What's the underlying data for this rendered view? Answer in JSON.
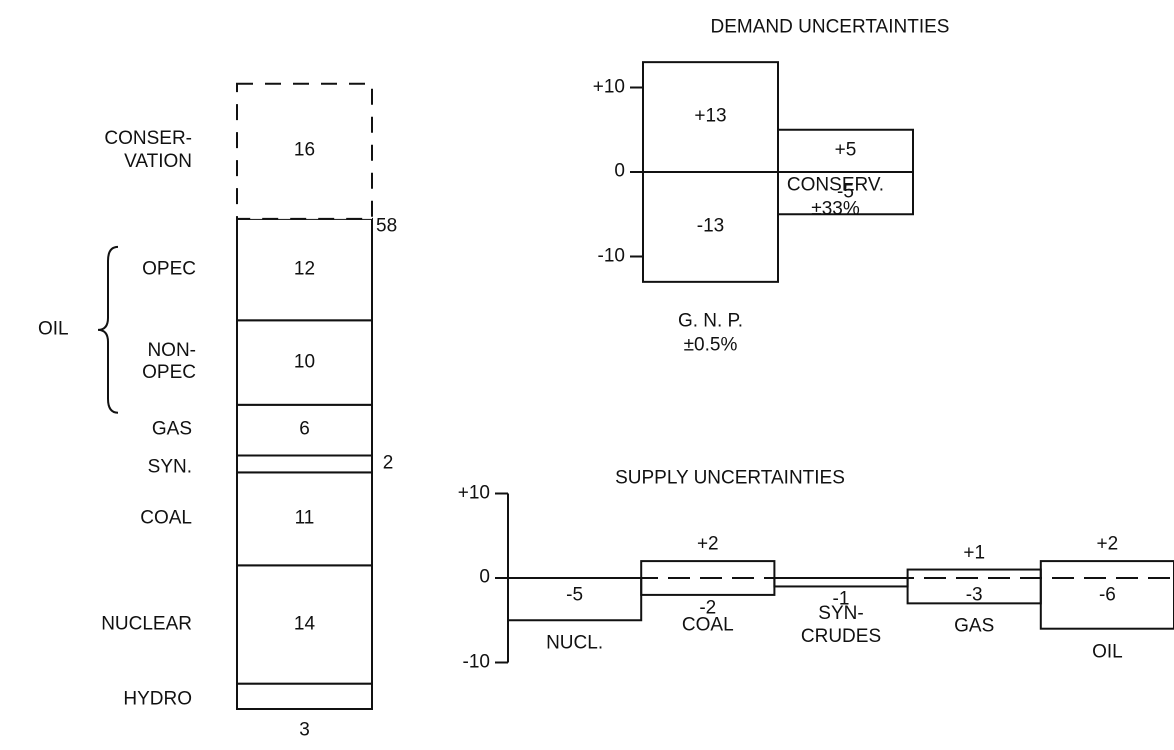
{
  "chart_data": [
    {
      "type": "stacked_bar",
      "series": [
        {
          "name": "HYDRO",
          "values": [
            3
          ]
        },
        {
          "name": "NUCLEAR",
          "values": [
            14
          ]
        },
        {
          "name": "COAL",
          "values": [
            11
          ]
        },
        {
          "name": "SYN.",
          "values": [
            2
          ]
        },
        {
          "name": "GAS",
          "values": [
            6
          ]
        },
        {
          "name": "NON-\nOPEC",
          "values": [
            10
          ]
        },
        {
          "name": "OPEC",
          "values": [
            12
          ]
        },
        {
          "name": "CONSER-\nVATION",
          "values": [
            16
          ],
          "dashed": true
        }
      ],
      "total": 58,
      "group": {
        "label": "OIL",
        "series": [
          5,
          6
        ]
      }
    },
    {
      "type": "range_bar",
      "title": "DEMAND UNCERTAINTIES",
      "categories": [
        "G. N. P.",
        "CONSERV."
      ],
      "sublabels": [
        "±0.5%",
        "±33%"
      ],
      "series": [
        {
          "values": [
            13,
            5
          ],
          "value_labels": [
            "+13",
            "+5"
          ]
        },
        {
          "values": [
            -13,
            -5
          ],
          "value_labels": [
            "-13",
            "-5"
          ]
        }
      ],
      "ylim": [
        -15,
        15
      ],
      "yticks": [
        {
          "value": 10,
          "label": "+10"
        },
        0,
        -10
      ],
      "zero_line": "solid"
    },
    {
      "type": "range_bar",
      "title": "SUPPLY UNCERTAINTIES",
      "categories": [
        "NUCL.",
        "COAL",
        "SYN-\nCRUDES",
        "GAS",
        "OIL"
      ],
      "series": [
        {
          "values": [
            null,
            2,
            null,
            1,
            2
          ],
          "value_labels": [
            null,
            "+2",
            null,
            "+1",
            "+2"
          ]
        },
        {
          "values": [
            -5,
            -2,
            -1,
            -3,
            -6
          ],
          "value_labels": [
            "-5",
            "-2",
            "-1",
            "-3",
            "-6"
          ]
        }
      ],
      "ylim": [
        -10,
        10
      ],
      "yticks": [
        {
          "value": 10,
          "label": "+10"
        },
        0,
        -10
      ],
      "zero_line": "dashed",
      "axis_line": true
    }
  ]
}
